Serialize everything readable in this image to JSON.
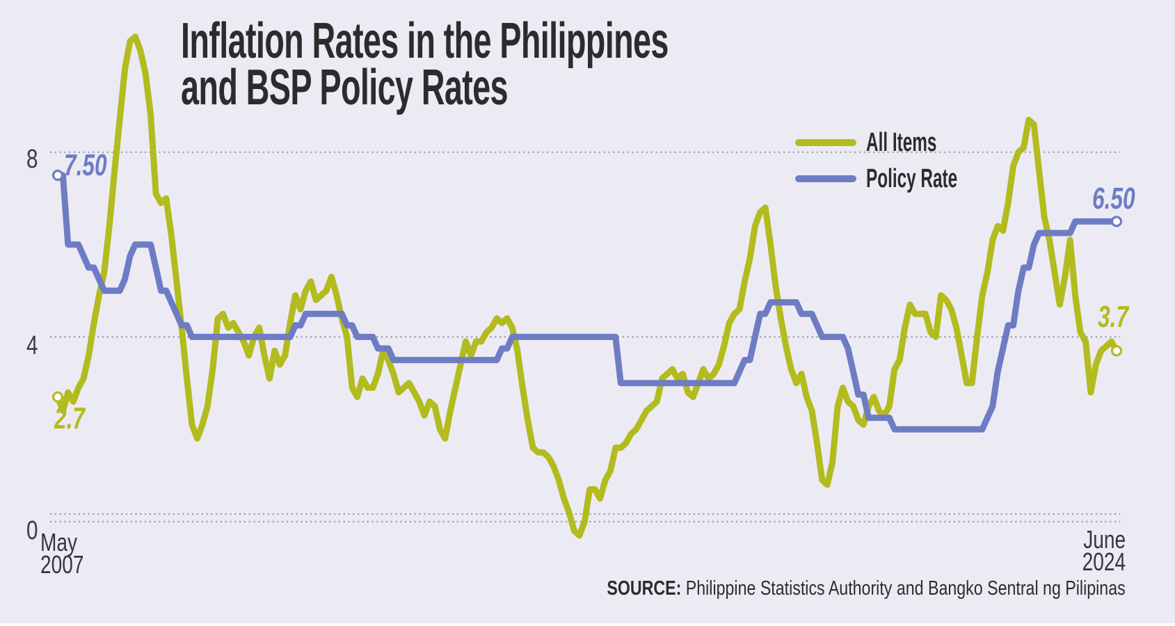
{
  "title": {
    "line1": "Inflation Rates in the Philippines",
    "line2": "and BSP Policy Rates"
  },
  "legend": [
    {
      "label": "All Items",
      "color": "#B3BB1E"
    },
    {
      "label": "Policy Rate",
      "color": "#6E7CC4"
    }
  ],
  "axis": {
    "y_ticks": [
      "8",
      "4",
      "0"
    ],
    "x_start": {
      "line1": "May",
      "line2": "2007"
    },
    "x_end": {
      "line1": "June",
      "line2": "2024"
    }
  },
  "annotations": {
    "policy_start": "7.50",
    "inflation_start": "2.7",
    "policy_end": "6.50",
    "inflation_end": "3.7"
  },
  "source": {
    "label": "SOURCE:",
    "text": " Philippine Statistics Authority and Bangko Sentral ng Pilipinas"
  },
  "colors": {
    "background": "#ECEBF4",
    "all_items": "#B3BB1E",
    "policy_rate": "#6E7CC4",
    "gridline": "#9B99A8",
    "title_text": "#2F2B2D",
    "axis_text": "#3A3A42",
    "dot_fill": "#FFFFFF"
  },
  "chart_data": {
    "type": "line",
    "title": "Inflation Rates in the Philippines and BSP Policy Rates",
    "x_unit": "month",
    "x_start": "2007-05",
    "x_end": "2024-06",
    "ylim": [
      -0.5,
      10.8
    ],
    "y_gridlines": [
      8,
      4,
      0
    ],
    "grid": "dotted-horizontal",
    "legend_position": "top-right",
    "series": [
      {
        "name": "All Items",
        "color": "#B3BB1E",
        "values": [
          2.7,
          2.4,
          2.8,
          2.6,
          2.9,
          3.1,
          3.6,
          4.3,
          4.9,
          5.4,
          6.4,
          7.6,
          8.7,
          9.8,
          10.4,
          10.5,
          10.2,
          9.7,
          8.8,
          7.1,
          6.9,
          7.0,
          6.2,
          5.2,
          4.2,
          3.1,
          2.1,
          1.8,
          2.1,
          2.5,
          3.3,
          4.4,
          4.5,
          4.2,
          4.3,
          4.1,
          3.9,
          3.6,
          4.0,
          4.2,
          3.6,
          3.1,
          3.7,
          3.4,
          3.6,
          4.3,
          4.9,
          4.6,
          5.0,
          5.2,
          4.8,
          4.9,
          5.0,
          5.3,
          4.9,
          4.4,
          4.0,
          2.9,
          2.7,
          3.1,
          2.9,
          2.9,
          3.2,
          3.7,
          3.5,
          3.2,
          2.8,
          2.9,
          3.0,
          2.8,
          2.6,
          2.3,
          2.6,
          2.5,
          2.0,
          1.8,
          2.4,
          2.9,
          3.4,
          3.9,
          3.6,
          3.9,
          3.9,
          4.1,
          4.2,
          4.4,
          4.3,
          4.4,
          4.2,
          3.7,
          2.9,
          2.2,
          1.6,
          1.5,
          1.5,
          1.4,
          1.2,
          0.9,
          0.5,
          0.2,
          -0.2,
          -0.3,
          0.0,
          0.7,
          0.7,
          0.5,
          0.9,
          1.1,
          1.6,
          1.6,
          1.7,
          1.9,
          2.0,
          2.2,
          2.4,
          2.5,
          2.6,
          3.1,
          3.2,
          3.3,
          3.1,
          3.2,
          2.8,
          2.7,
          3.0,
          3.3,
          3.1,
          3.2,
          3.4,
          3.8,
          4.3,
          4.5,
          4.6,
          5.2,
          5.7,
          6.4,
          6.7,
          6.8,
          6.0,
          5.1,
          4.4,
          3.8,
          3.3,
          3.0,
          3.2,
          2.7,
          2.4,
          1.7,
          0.9,
          0.8,
          1.3,
          2.5,
          2.9,
          2.6,
          2.5,
          2.2,
          2.1,
          2.5,
          2.7,
          2.4,
          2.3,
          2.5,
          3.3,
          3.5,
          4.2,
          4.7,
          4.5,
          4.5,
          4.5,
          4.1,
          4.0,
          4.9,
          4.8,
          4.6,
          4.2,
          3.6,
          3.0,
          3.0,
          4.0,
          4.9,
          5.4,
          6.1,
          6.4,
          6.3,
          6.9,
          7.7,
          8.0,
          8.1,
          8.7,
          8.6,
          7.6,
          6.6,
          6.1,
          5.4,
          4.7,
          5.3,
          6.1,
          4.9,
          4.1,
          3.9,
          2.8,
          3.4,
          3.7,
          3.8,
          3.9,
          3.7
        ]
      },
      {
        "name": "Policy Rate",
        "color": "#6E7CC4",
        "values": [
          7.5,
          7.5,
          6.0,
          6.0,
          6.0,
          5.75,
          5.5,
          5.5,
          5.25,
          5.0,
          5.0,
          5.0,
          5.0,
          5.25,
          5.75,
          6.0,
          6.0,
          6.0,
          6.0,
          5.5,
          5.0,
          5.0,
          4.75,
          4.5,
          4.25,
          4.25,
          4.0,
          4.0,
          4.0,
          4.0,
          4.0,
          4.0,
          4.0,
          4.0,
          4.0,
          4.0,
          4.0,
          4.0,
          4.0,
          4.0,
          4.0,
          4.0,
          4.0,
          4.0,
          4.0,
          4.0,
          4.25,
          4.25,
          4.5,
          4.5,
          4.5,
          4.5,
          4.5,
          4.5,
          4.5,
          4.5,
          4.25,
          4.25,
          4.0,
          4.0,
          4.0,
          4.0,
          3.75,
          3.75,
          3.75,
          3.5,
          3.5,
          3.5,
          3.5,
          3.5,
          3.5,
          3.5,
          3.5,
          3.5,
          3.5,
          3.5,
          3.5,
          3.5,
          3.5,
          3.5,
          3.5,
          3.5,
          3.5,
          3.5,
          3.5,
          3.5,
          3.75,
          3.75,
          4.0,
          4.0,
          4.0,
          4.0,
          4.0,
          4.0,
          4.0,
          4.0,
          4.0,
          4.0,
          4.0,
          4.0,
          4.0,
          4.0,
          4.0,
          4.0,
          4.0,
          4.0,
          4.0,
          4.0,
          4.0,
          3.0,
          3.0,
          3.0,
          3.0,
          3.0,
          3.0,
          3.0,
          3.0,
          3.0,
          3.0,
          3.0,
          3.0,
          3.0,
          3.0,
          3.0,
          3.0,
          3.0,
          3.0,
          3.0,
          3.0,
          3.0,
          3.0,
          3.0,
          3.25,
          3.5,
          3.5,
          4.0,
          4.5,
          4.5,
          4.75,
          4.75,
          4.75,
          4.75,
          4.75,
          4.75,
          4.5,
          4.5,
          4.5,
          4.25,
          4.0,
          4.0,
          4.0,
          4.0,
          4.0,
          3.75,
          3.25,
          2.75,
          2.75,
          2.25,
          2.25,
          2.25,
          2.25,
          2.25,
          2.0,
          2.0,
          2.0,
          2.0,
          2.0,
          2.0,
          2.0,
          2.0,
          2.0,
          2.0,
          2.0,
          2.0,
          2.0,
          2.0,
          2.0,
          2.0,
          2.0,
          2.0,
          2.25,
          2.5,
          3.25,
          3.75,
          4.25,
          4.25,
          5.0,
          5.5,
          5.5,
          6.0,
          6.25,
          6.25,
          6.25,
          6.25,
          6.25,
          6.25,
          6.25,
          6.5,
          6.5,
          6.5,
          6.5,
          6.5,
          6.5,
          6.5,
          6.5,
          6.5
        ]
      }
    ]
  }
}
